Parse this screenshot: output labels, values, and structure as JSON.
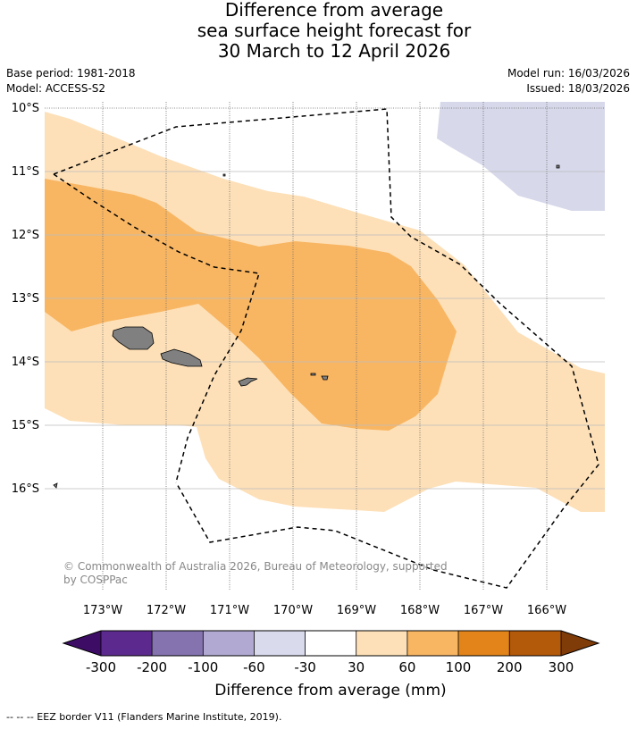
{
  "title": {
    "line1": "Difference from average",
    "line2": "sea surface height forecast for",
    "line3": "30 March to 12 April 2026"
  },
  "meta": {
    "base_period": "Base period: 1981-2018",
    "model": "Model: ACCESS-S2",
    "model_run": "Model run: 16/03/2026",
    "issued": "Issued: 18/03/2026"
  },
  "map": {
    "lat_labels": [
      "10°S",
      "11°S",
      "12°S",
      "13°S",
      "14°S",
      "15°S",
      "16°S"
    ],
    "lon_labels": [
      "173°W",
      "172°W",
      "171°W",
      "170°W",
      "169°W",
      "168°W",
      "167°W",
      "166°W"
    ],
    "copyright_line1": "© Commonwealth of Australia 2026, Bureau of Meteorology, supported",
    "copyright_line2": "by COSPPac",
    "colors": {
      "light_orange": "#fde0b8",
      "mid_orange": "#f8b663",
      "lavender": "#d7d8ea",
      "land": "#808080"
    }
  },
  "colorbar": {
    "ticks": [
      "-300",
      "-200",
      "-100",
      "-60",
      "-30",
      "30",
      "60",
      "100",
      "200",
      "300"
    ],
    "label": "Difference from average (mm)",
    "colors": [
      "#3d0d66",
      "#5c2a8e",
      "#8573b0",
      "#b1a9d2",
      "#d9daec",
      "#ffffff",
      "#fde0b8",
      "#f8b663",
      "#e2841a",
      "#b3590a",
      "#7f3b08"
    ]
  },
  "footer": {
    "legend": "--  --  -- EEZ border V11 (Flanders Marine Institute, 2019)."
  }
}
